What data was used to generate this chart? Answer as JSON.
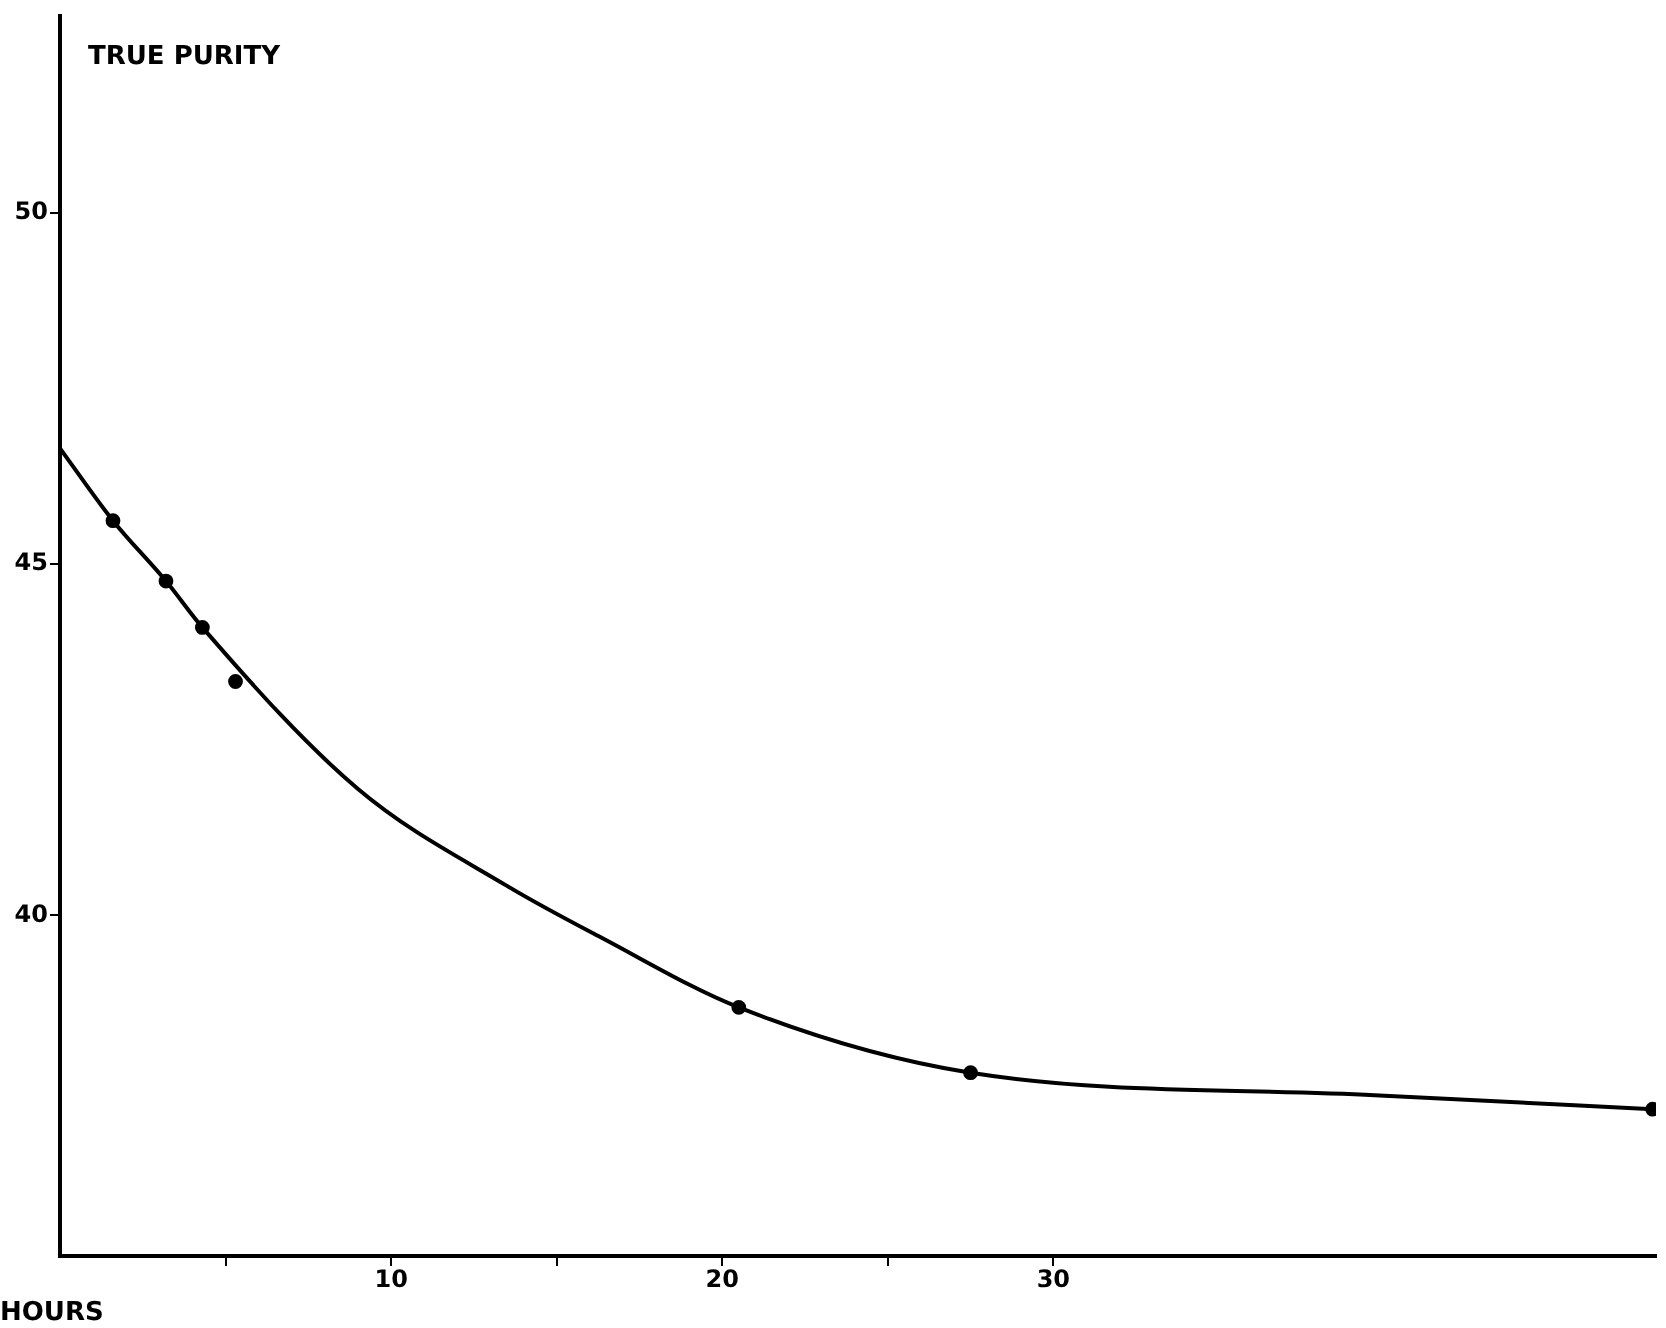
{
  "chart_data": {
    "type": "line",
    "xlabel": "HOURS",
    "ylabel": "TRUE PURITY",
    "xlim": [
      0,
      48.2
    ],
    "ylim": [
      35.15,
      52.8
    ],
    "xticks": [
      {
        "value": 5,
        "label": null
      },
      10,
      {
        "value": 15,
        "label": null
      },
      20,
      {
        "value": 25,
        "label": null
      },
      30
    ],
    "yticks": [
      40,
      45,
      50
    ],
    "grid": false,
    "legend": false,
    "series": [
      {
        "color": "#000000",
        "marker": "none",
        "line_style": "solid",
        "x": [
          0,
          1.6,
          3.2,
          4.3,
          9.0,
          13.5,
          16.4,
          20.5,
          27.5,
          39.7,
          48.1
        ],
        "values": [
          46.65,
          45.62,
          44.76,
          44.1,
          41.8,
          40.42,
          39.67,
          38.69,
          37.76,
          37.44,
          37.24
        ]
      },
      {
        "type": "scatter",
        "color": "#000000",
        "marker": "circle",
        "x": [
          1.6,
          3.2,
          4.3,
          5.3,
          20.5,
          27.5,
          48.1
        ],
        "values": [
          45.62,
          44.76,
          44.1,
          43.33,
          38.69,
          37.76,
          37.24
        ]
      }
    ]
  }
}
